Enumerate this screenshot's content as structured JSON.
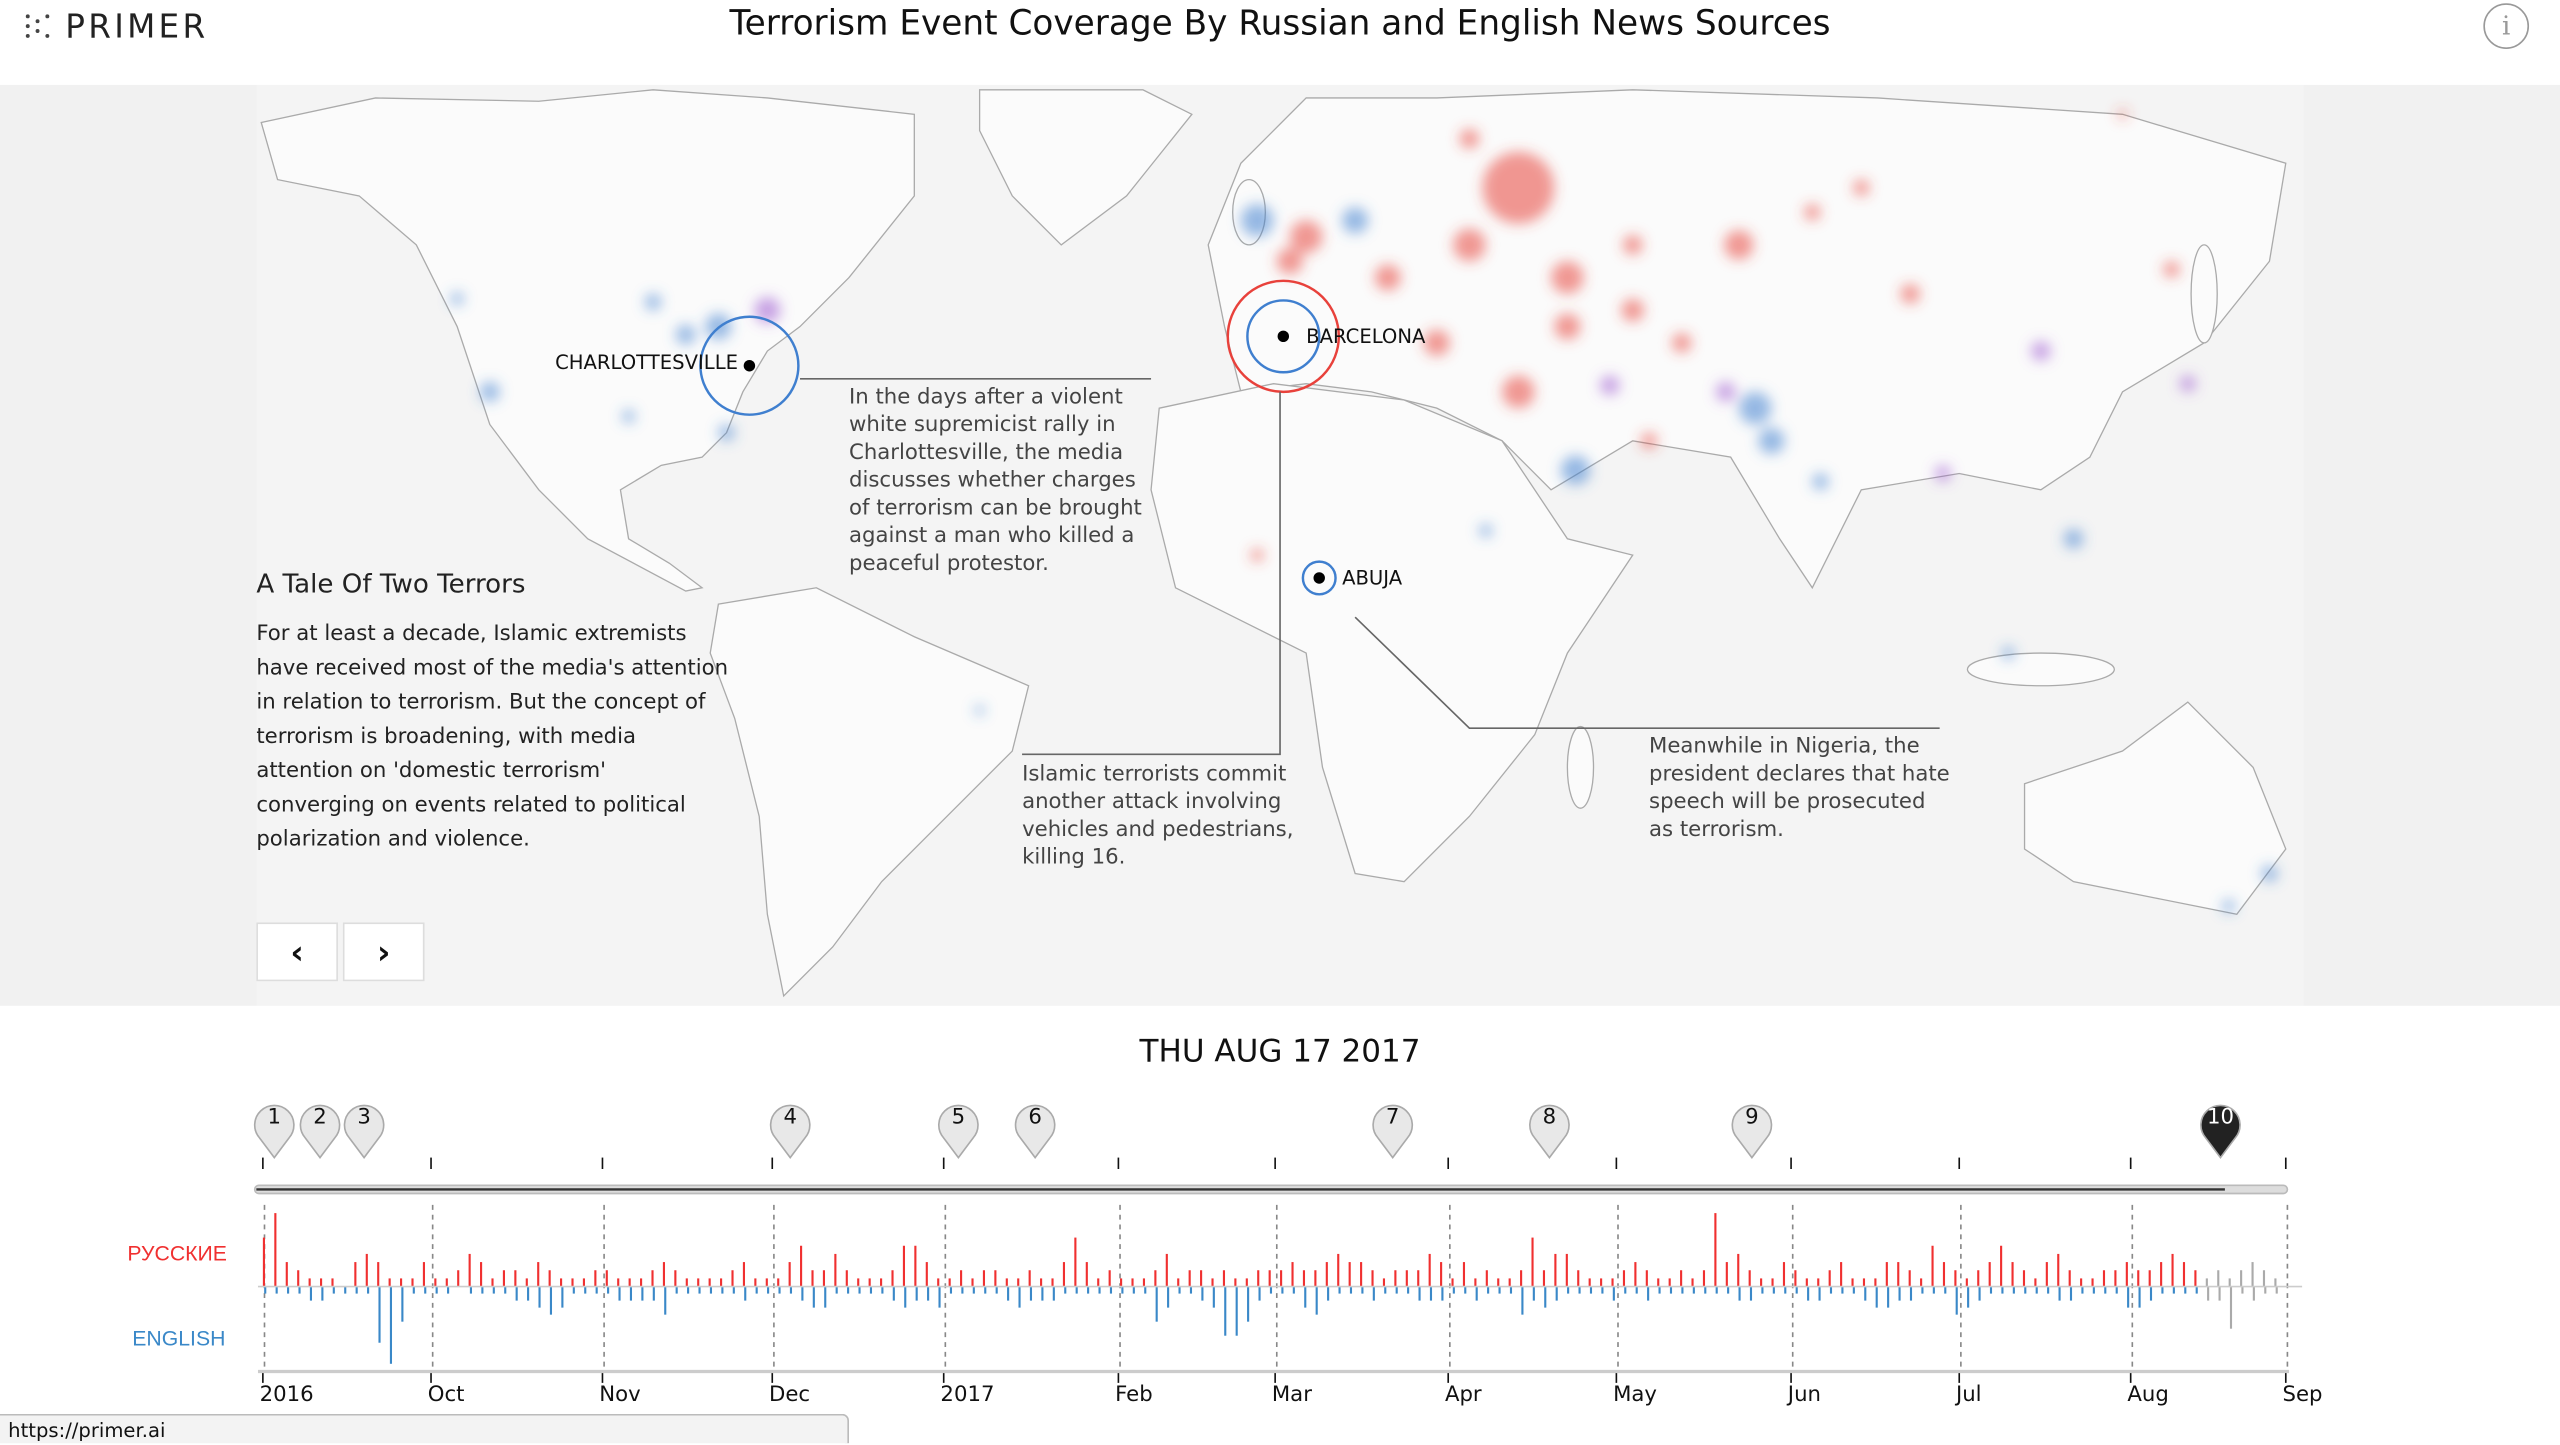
{
  "header": {
    "logo_text": "PRIMER",
    "title": "Terrorism Event Coverage By Russian and English News Sources",
    "info_icon": "info-circle-icon"
  },
  "story": {
    "title": "A Tale Of Two Terrors",
    "body": "For at least a decade, Islamic extremists have received most of the media's attention in relation to terrorism. But the concept of terrorism is broadening, with media attention on 'domestic terrorism' converging on events related to political polarization and violence.",
    "prev_label": "‹",
    "next_label": "›"
  },
  "map": {
    "places": [
      {
        "name": "CHARLOTTESVILLE"
      },
      {
        "name": "BARCELONA"
      },
      {
        "name": "ABUJA"
      }
    ],
    "annotations": [
      "In the days after a violent white supremicist rally in Charlottesville, the media discusses whether charges of terrorism can be brought against a man who killed a peaceful protestor.",
      "Islamic terrorists commit another attack involving vehicles and pedestrians, killing 16.",
      "Meanwhile in Nigeria, the president declares that hate speech will be prosecuted as terrorism."
    ],
    "colors": {
      "russian": "#e8413b",
      "english": "#3f7fcf",
      "both": "#9a56d0"
    }
  },
  "timeline": {
    "date": "THU AUG 17 2017",
    "markers": [
      "1",
      "2",
      "3",
      "4",
      "5",
      "6",
      "7",
      "8",
      "9",
      "10"
    ],
    "active_marker": "10",
    "progress_percent": 97
  },
  "chart_data": {
    "type": "bar",
    "series": [
      {
        "name": "РУССКИЕ",
        "color": "#f03030",
        "values": [
          6,
          9,
          3,
          2,
          1,
          1,
          1,
          0,
          3,
          4,
          3,
          1,
          1,
          1,
          3,
          1,
          1,
          2,
          4,
          3,
          1,
          2,
          2,
          1,
          3,
          2,
          1,
          1,
          1,
          2,
          2,
          1,
          1,
          1,
          2,
          3,
          2,
          1,
          1,
          1,
          1,
          2,
          3,
          1,
          1,
          1,
          3,
          5,
          2,
          2,
          4,
          2,
          1,
          1,
          1,
          2,
          5,
          5,
          3,
          1,
          1,
          2,
          1,
          2,
          2,
          1,
          1,
          2,
          1,
          1,
          3,
          6,
          3,
          1,
          2,
          1,
          1,
          1,
          2,
          4,
          1,
          2,
          2,
          1,
          2,
          1,
          1,
          2,
          2,
          2,
          3,
          2,
          2,
          3,
          4,
          3,
          3,
          2,
          1,
          2,
          2,
          2,
          4,
          3,
          1,
          3,
          1,
          2,
          1,
          1,
          2,
          6,
          2,
          4,
          4,
          2,
          1,
          1,
          1,
          2,
          3,
          2,
          1,
          1,
          2,
          1,
          2,
          9,
          3,
          4,
          2,
          1,
          1,
          3,
          2,
          1,
          1,
          2,
          3,
          1,
          1,
          1,
          3,
          3,
          2,
          1,
          5,
          3,
          2,
          1,
          2,
          3,
          5,
          3,
          2,
          1,
          3,
          4,
          2,
          1,
          1,
          2,
          2,
          3,
          2,
          2,
          3,
          4,
          3,
          2,
          1,
          2,
          1,
          2,
          3,
          2,
          1
        ]
      },
      {
        "name": "ENGLISH",
        "color": "#3a88c8",
        "values": [
          1,
          1,
          1,
          1,
          2,
          2,
          1,
          1,
          1,
          1,
          8,
          11,
          5,
          1,
          1,
          1,
          1,
          0,
          1,
          1,
          1,
          1,
          2,
          2,
          3,
          4,
          3,
          1,
          1,
          1,
          1,
          2,
          2,
          2,
          2,
          4,
          1,
          1,
          1,
          1,
          1,
          1,
          2,
          1,
          1,
          1,
          1,
          2,
          3,
          3,
          1,
          1,
          1,
          1,
          1,
          2,
          3,
          2,
          2,
          3,
          1,
          1,
          1,
          1,
          1,
          2,
          3,
          2,
          2,
          2,
          1,
          1,
          1,
          1,
          1,
          1,
          1,
          1,
          5,
          3,
          1,
          1,
          2,
          3,
          7,
          7,
          5,
          2,
          1,
          1,
          1,
          3,
          4,
          2,
          1,
          1,
          1,
          2,
          1,
          1,
          1,
          2,
          2,
          2,
          1,
          1,
          2,
          1,
          1,
          1,
          4,
          2,
          3,
          2,
          1,
          1,
          1,
          1,
          2,
          1,
          1,
          2,
          1,
          1,
          1,
          1,
          1,
          1,
          1,
          2,
          2,
          1,
          1,
          1,
          1,
          2,
          2,
          1,
          1,
          1,
          2,
          3,
          3,
          2,
          2,
          1,
          1,
          1,
          4,
          3,
          2,
          1,
          1,
          1,
          1,
          1,
          1,
          2,
          2,
          1,
          1,
          1,
          1,
          3,
          3,
          2,
          1,
          1,
          1,
          1,
          2,
          2,
          6,
          1,
          2,
          1,
          1
        ]
      }
    ],
    "x_start": "2016-09-01",
    "x_end": "2017-09-01",
    "tick_labels": [
      "2016",
      "Oct",
      "Nov",
      "Dec",
      "2017",
      "Feb",
      "Mar",
      "Apr",
      "May",
      "Jun",
      "Jul",
      "Aug",
      "Sep"
    ],
    "current_date": "2017-08-17",
    "grid": true
  },
  "status_bar": {
    "url": "https://primer.ai"
  }
}
